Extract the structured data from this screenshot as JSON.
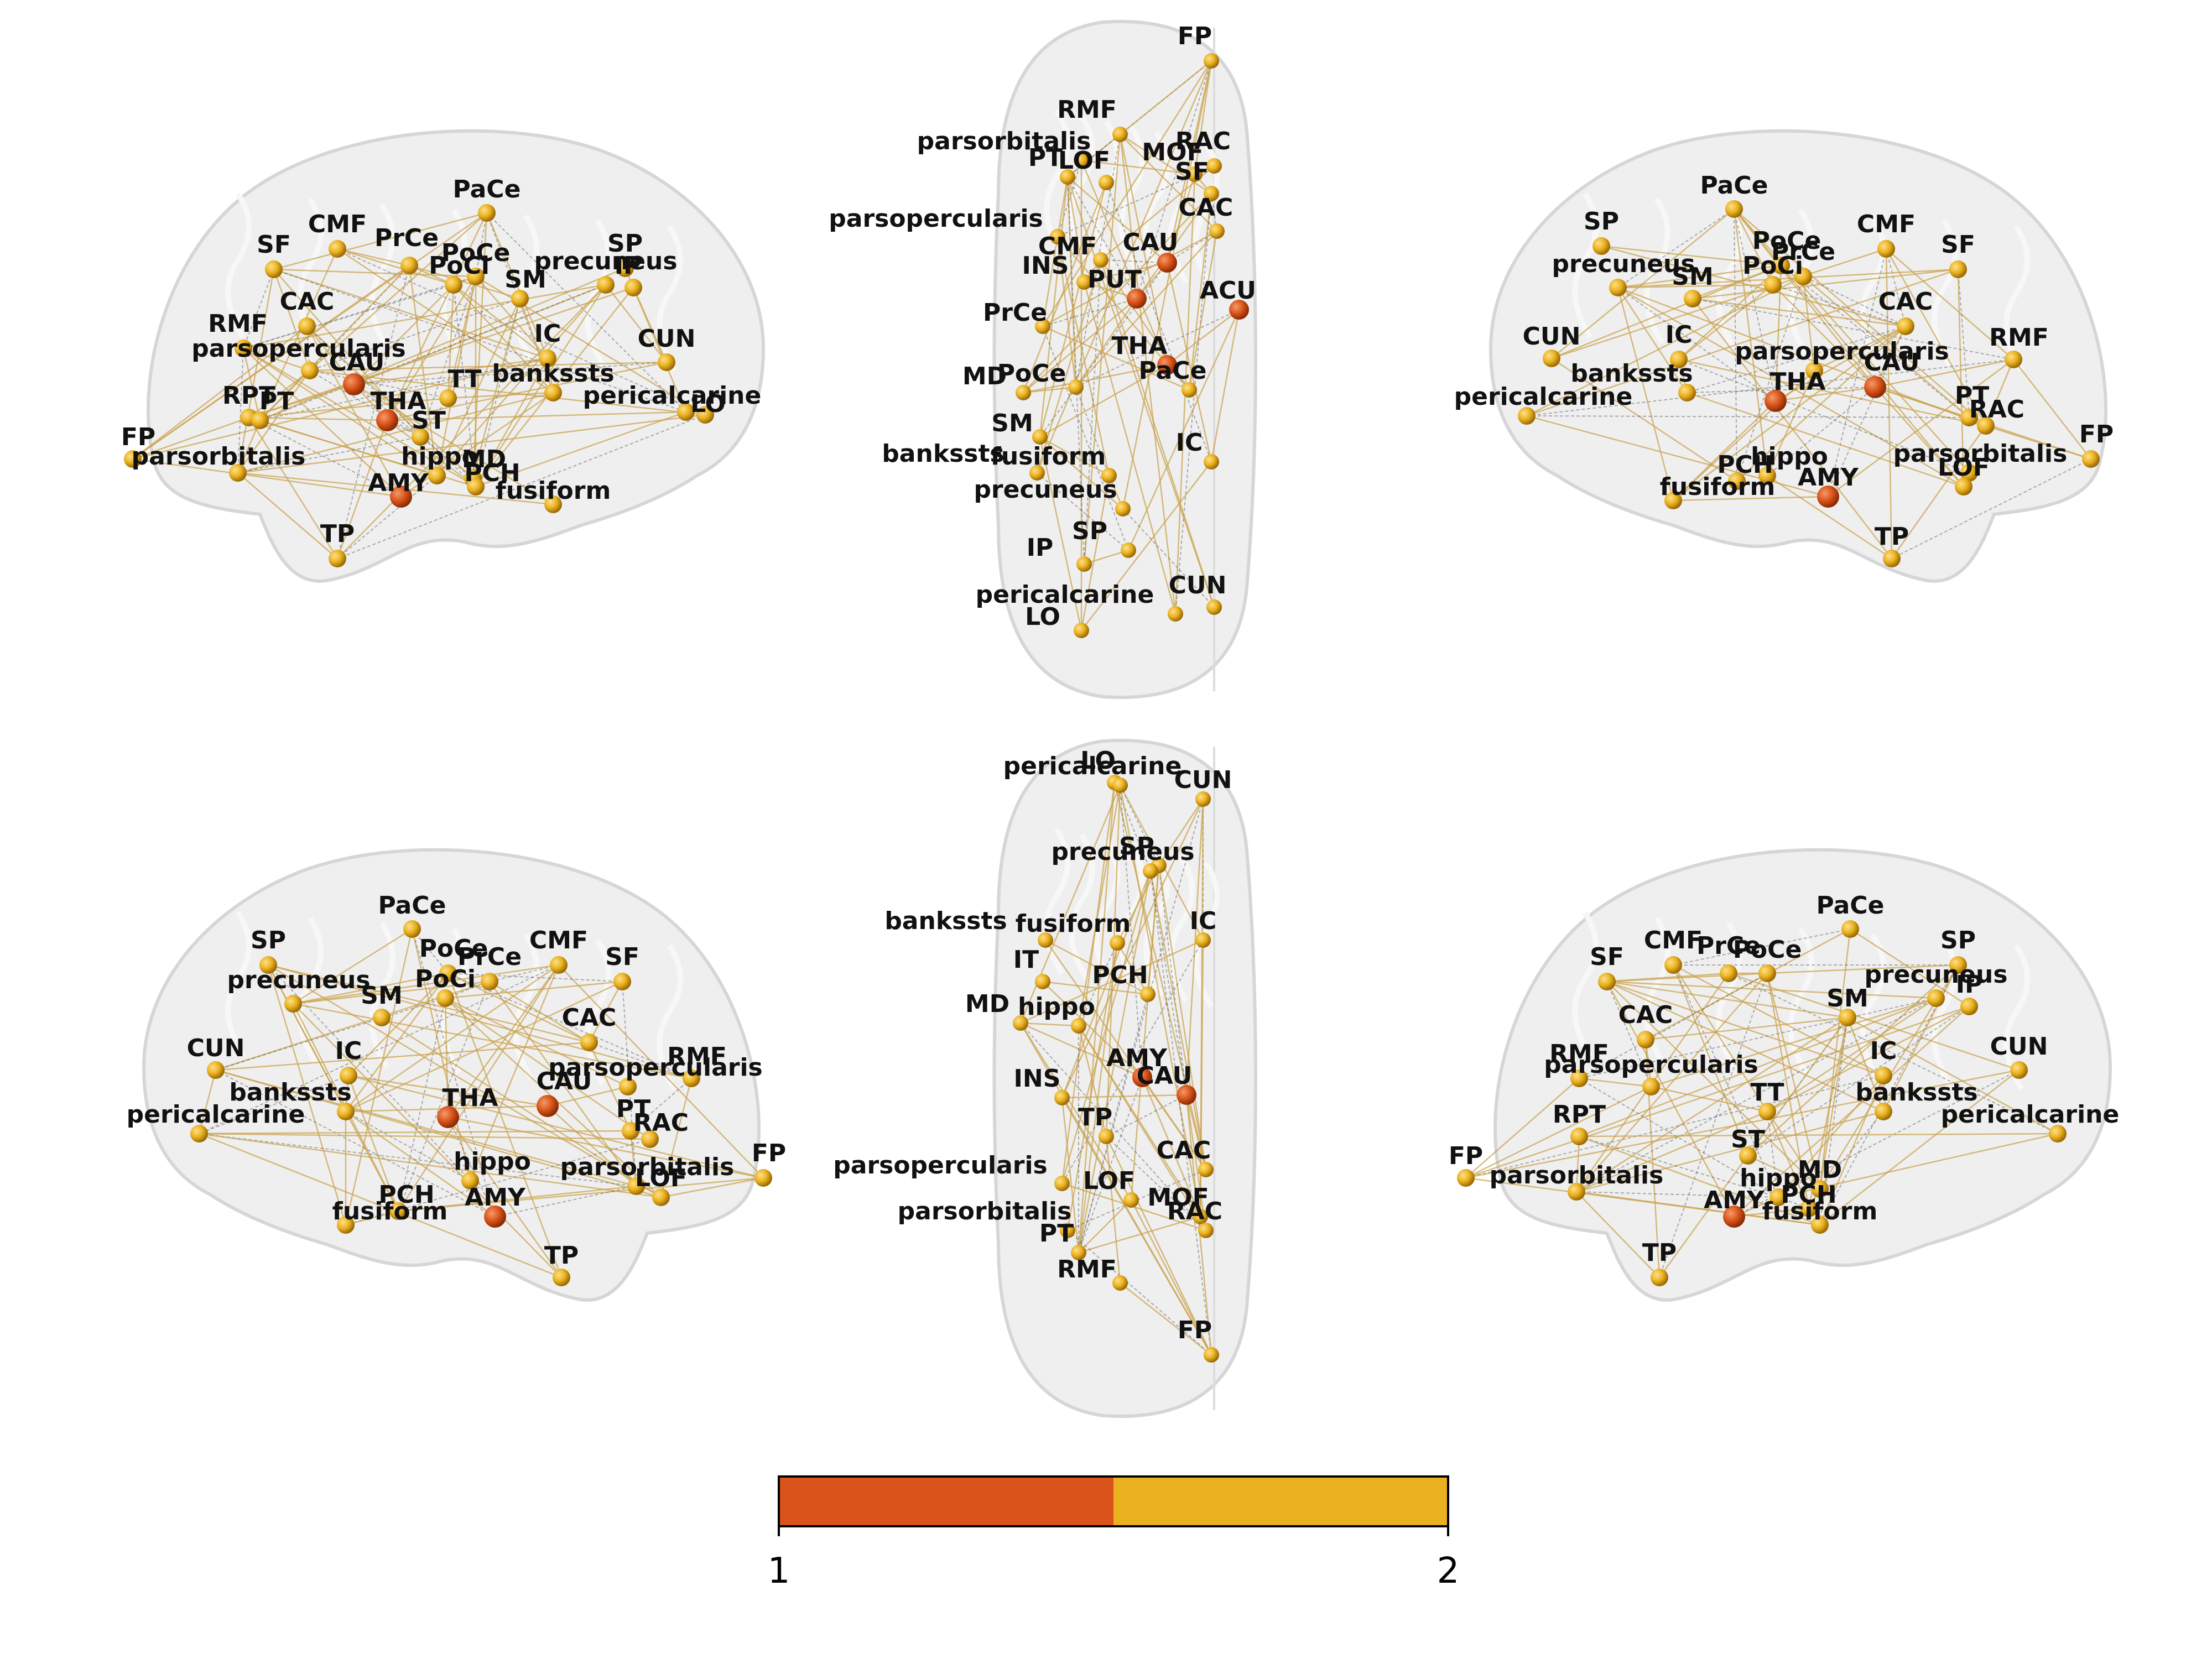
{
  "colors": {
    "brain": "#ececec",
    "brain_edge": "#d6d6d6",
    "edge_gold": "#c9a14a",
    "edge_gray": "#555555",
    "node_orange": "#d9531a",
    "node_gold": "#e9b11f"
  },
  "colorbar": {
    "tick_min": "1",
    "tick_max": "2",
    "segments": [
      {
        "value": 1,
        "color": "#d9531a"
      },
      {
        "value": 2,
        "color": "#ebb020"
      }
    ]
  },
  "views": [
    {
      "name": "lateral-left-top",
      "nodes": [
        {
          "label": "PaCe",
          "level": 2
        },
        {
          "label": "CMF",
          "level": 2
        },
        {
          "label": "PrCe",
          "level": 2
        },
        {
          "label": "PoCe",
          "level": 2
        },
        {
          "label": "PoCi",
          "level": 2
        },
        {
          "label": "SP",
          "level": 2
        },
        {
          "label": "SF",
          "level": 2
        },
        {
          "label": "precuneus",
          "level": 2
        },
        {
          "label": "SM",
          "level": 2
        },
        {
          "label": "IP",
          "level": 2
        },
        {
          "label": "CAC",
          "level": 2
        },
        {
          "label": "IC",
          "level": 2
        },
        {
          "label": "CUN",
          "level": 2
        },
        {
          "label": "RMF",
          "level": 2
        },
        {
          "label": "parsopercularis",
          "level": 2
        },
        {
          "label": "CAU",
          "level": 1
        },
        {
          "label": "TT",
          "level": 2
        },
        {
          "label": "bankssts",
          "level": 2
        },
        {
          "label": "pericalcarine",
          "level": 2
        },
        {
          "label": "RPT",
          "level": 2
        },
        {
          "label": "PT",
          "level": 2
        },
        {
          "label": "THA",
          "level": 1
        },
        {
          "label": "ST",
          "level": 2
        },
        {
          "label": "FP",
          "level": 2
        },
        {
          "label": "parsorbitalis",
          "level": 2
        },
        {
          "label": "hippo",
          "level": 2
        },
        {
          "label": "MD",
          "level": 2
        },
        {
          "label": "PCH",
          "level": 2
        },
        {
          "label": "AMY",
          "level": 1
        },
        {
          "label": "fusiform",
          "level": 2
        },
        {
          "label": "TP",
          "level": 2
        },
        {
          "label": "LO",
          "level": 2
        }
      ]
    },
    {
      "name": "dorsal-top",
      "nodes": [
        {
          "label": "FP",
          "level": 2
        },
        {
          "label": "RMF",
          "level": 2
        },
        {
          "label": "parsorbitalis",
          "level": 2
        },
        {
          "label": "RAC",
          "level": 2
        },
        {
          "label": "PT",
          "level": 2
        },
        {
          "label": "LOF",
          "level": 2
        },
        {
          "label": "MOF",
          "level": 2
        },
        {
          "label": "SF",
          "level": 2
        },
        {
          "label": "parsopercularis",
          "level": 2
        },
        {
          "label": "CAC",
          "level": 2
        },
        {
          "label": "CMF",
          "level": 2
        },
        {
          "label": "CAU",
          "level": 1
        },
        {
          "label": "INS",
          "level": 2
        },
        {
          "label": "PUT",
          "level": 1
        },
        {
          "label": "ACU",
          "level": 1
        },
        {
          "label": "PrCe",
          "level": 2
        },
        {
          "label": "THA",
          "level": 1
        },
        {
          "label": "MD",
          "level": 2
        },
        {
          "label": "PoCe",
          "level": 2
        },
        {
          "label": "PaCe",
          "level": 2
        },
        {
          "label": "SM",
          "level": 2
        },
        {
          "label": "bankssts",
          "level": 2
        },
        {
          "label": "fusiform",
          "level": 2
        },
        {
          "label": "IC",
          "level": 2
        },
        {
          "label": "precuneus",
          "level": 2
        },
        {
          "label": "IP",
          "level": 2
        },
        {
          "label": "SP",
          "level": 2
        },
        {
          "label": "CUN",
          "level": 2
        },
        {
          "label": "pericalcarine",
          "level": 2
        },
        {
          "label": "LO",
          "level": 2
        }
      ]
    },
    {
      "name": "lateral-right-top",
      "nodes": [
        {
          "label": "PaCe",
          "level": 2
        },
        {
          "label": "SP",
          "level": 2
        },
        {
          "label": "CMF",
          "level": 2
        },
        {
          "label": "PoCe",
          "level": 2
        },
        {
          "label": "PrCe",
          "level": 2
        },
        {
          "label": "SF",
          "level": 2
        },
        {
          "label": "precuneus",
          "level": 2
        },
        {
          "label": "PoCi",
          "level": 2
        },
        {
          "label": "SM",
          "level": 2
        },
        {
          "label": "CAC",
          "level": 2
        },
        {
          "label": "CUN",
          "level": 2
        },
        {
          "label": "IC",
          "level": 2
        },
        {
          "label": "parsopercularis",
          "level": 2
        },
        {
          "label": "RMF",
          "level": 2
        },
        {
          "label": "CAU",
          "level": 1
        },
        {
          "label": "bankssts",
          "level": 2
        },
        {
          "label": "THA",
          "level": 1
        },
        {
          "label": "pericalcarine",
          "level": 2
        },
        {
          "label": "PT",
          "level": 2
        },
        {
          "label": "RAC",
          "level": 2
        },
        {
          "label": "FP",
          "level": 2
        },
        {
          "label": "hippo",
          "level": 2
        },
        {
          "label": "parsorbitalis",
          "level": 2
        },
        {
          "label": "fusiform",
          "level": 2
        },
        {
          "label": "PCH",
          "level": 2
        },
        {
          "label": "AMY",
          "level": 1
        },
        {
          "label": "LOF",
          "level": 2
        },
        {
          "label": "TP",
          "level": 2
        }
      ]
    },
    {
      "name": "medial-left-bottom",
      "nodes": [
        {
          "label": "PaCe",
          "level": 2
        },
        {
          "label": "SP",
          "level": 2
        },
        {
          "label": "CMF",
          "level": 2
        },
        {
          "label": "PoCe",
          "level": 2
        },
        {
          "label": "PrCe",
          "level": 2
        },
        {
          "label": "SF",
          "level": 2
        },
        {
          "label": "precuneus",
          "level": 2
        },
        {
          "label": "PoCi",
          "level": 2
        },
        {
          "label": "SM",
          "level": 2
        },
        {
          "label": "CAC",
          "level": 2
        },
        {
          "label": "CUN",
          "level": 2
        },
        {
          "label": "IC",
          "level": 2
        },
        {
          "label": "parsopercularis",
          "level": 2
        },
        {
          "label": "RMF",
          "level": 2
        },
        {
          "label": "CAU",
          "level": 1
        },
        {
          "label": "bankssts",
          "level": 2
        },
        {
          "label": "THA",
          "level": 1
        },
        {
          "label": "pericalcarine",
          "level": 2
        },
        {
          "label": "PT",
          "level": 2
        },
        {
          "label": "RAC",
          "level": 2
        },
        {
          "label": "FP",
          "level": 2
        },
        {
          "label": "hippo",
          "level": 2
        },
        {
          "label": "parsorbitalis",
          "level": 2
        },
        {
          "label": "fusiform",
          "level": 2
        },
        {
          "label": "PCH",
          "level": 2
        },
        {
          "label": "AMY",
          "level": 1
        },
        {
          "label": "LOF",
          "level": 2
        },
        {
          "label": "TP",
          "level": 2
        }
      ]
    },
    {
      "name": "ventral-bottom",
      "nodes": [
        {
          "label": "LO",
          "level": 2
        },
        {
          "label": "pericalcarine",
          "level": 2
        },
        {
          "label": "CUN",
          "level": 2
        },
        {
          "label": "SP",
          "level": 2
        },
        {
          "label": "precuneus",
          "level": 2
        },
        {
          "label": "bankssts",
          "level": 2
        },
        {
          "label": "fusiform",
          "level": 2
        },
        {
          "label": "IC",
          "level": 2
        },
        {
          "label": "IT",
          "level": 2
        },
        {
          "label": "PCH",
          "level": 2
        },
        {
          "label": "MD",
          "level": 2
        },
        {
          "label": "hippo",
          "level": 2
        },
        {
          "label": "AMY",
          "level": 1
        },
        {
          "label": "INS",
          "level": 2
        },
        {
          "label": "CAU",
          "level": 1
        },
        {
          "label": "TP",
          "level": 2
        },
        {
          "label": "parsopercularis",
          "level": 2
        },
        {
          "label": "CAC",
          "level": 2
        },
        {
          "label": "LOF",
          "level": 2
        },
        {
          "label": "MOF",
          "level": 2
        },
        {
          "label": "parsorbitalis",
          "level": 2
        },
        {
          "label": "PT",
          "level": 2
        },
        {
          "label": "RAC",
          "level": 2
        },
        {
          "label": "RMF",
          "level": 2
        },
        {
          "label": "FP",
          "level": 2
        }
      ]
    },
    {
      "name": "lateral-right-bottom",
      "nodes": [
        {
          "label": "PaCe",
          "level": 2
        },
        {
          "label": "CMF",
          "level": 2
        },
        {
          "label": "PrCe",
          "level": 2
        },
        {
          "label": "PoCe",
          "level": 2
        },
        {
          "label": "SP",
          "level": 2
        },
        {
          "label": "SF",
          "level": 2
        },
        {
          "label": "precuneus",
          "level": 2
        },
        {
          "label": "SM",
          "level": 2
        },
        {
          "label": "IP",
          "level": 2
        },
        {
          "label": "CAC",
          "level": 2
        },
        {
          "label": "IC",
          "level": 2
        },
        {
          "label": "CUN",
          "level": 2
        },
        {
          "label": "RMF",
          "level": 2
        },
        {
          "label": "parsopercularis",
          "level": 2
        },
        {
          "label": "TT",
          "level": 2
        },
        {
          "label": "bankssts",
          "level": 2
        },
        {
          "label": "pericalcarine",
          "level": 2
        },
        {
          "label": "RPT",
          "level": 2
        },
        {
          "label": "FP",
          "level": 2
        },
        {
          "label": "ST",
          "level": 2
        },
        {
          "label": "parsorbitalis",
          "level": 2
        },
        {
          "label": "hippo",
          "level": 2
        },
        {
          "label": "MD",
          "level": 2
        },
        {
          "label": "AMY",
          "level": 1
        },
        {
          "label": "PCH",
          "level": 2
        },
        {
          "label": "fusiform",
          "level": 2
        },
        {
          "label": "TP",
          "level": 2
        }
      ]
    }
  ]
}
